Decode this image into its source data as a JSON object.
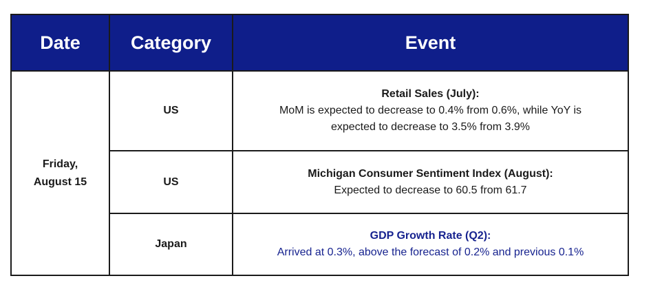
{
  "header": {
    "date": "Date",
    "category": "Category",
    "event": "Event"
  },
  "date": {
    "line1": "Friday,",
    "line2": "August 15"
  },
  "rows": [
    {
      "category": "US",
      "title": "Retail Sales (July):",
      "description": "MoM is expected to decrease to 0.4% from 0.6%, while YoY is expected to decrease to 3.5% from 3.9%"
    },
    {
      "category": "US",
      "title": "Michigan Consumer Sentiment Index (August):",
      "description": "Expected to decrease to 60.5 from 61.7"
    },
    {
      "category": "Japan",
      "title": "GDP Growth Rate (Q2):",
      "description": "Arrived at 0.3%, above the forecast of 0.2% and previous 0.1%"
    }
  ],
  "colors": {
    "header_background": "#0f1e8a",
    "header_text": "#ffffff",
    "highlight_text": "#17238f",
    "border": "#1a1a1a"
  }
}
